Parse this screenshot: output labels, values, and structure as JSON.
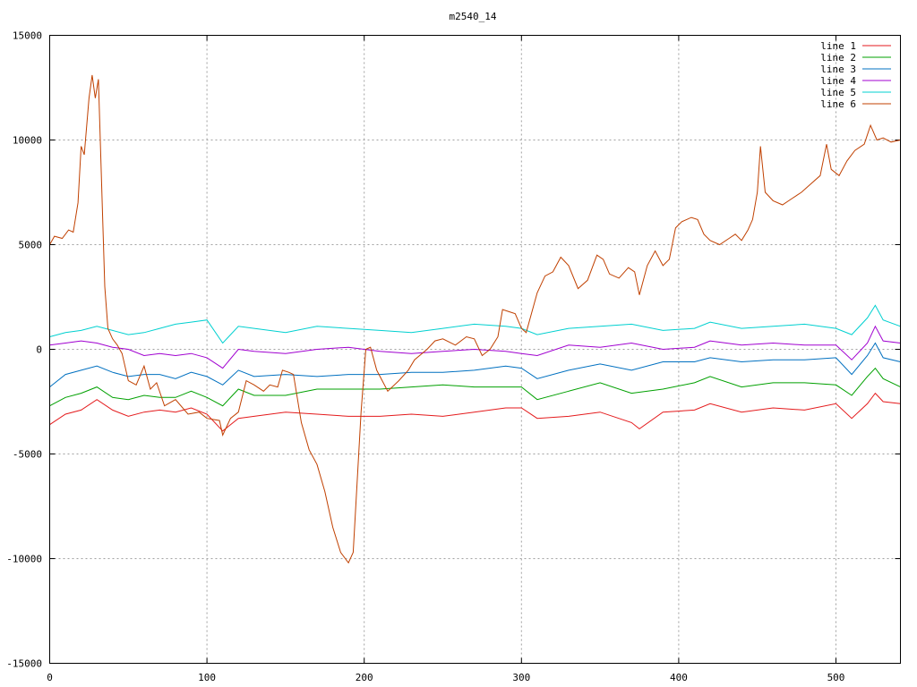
{
  "chart_data": {
    "type": "line",
    "title": "m2540_14",
    "xlim": [
      0,
      541
    ],
    "ylim": [
      -15000,
      15000
    ],
    "grid": true,
    "legend_position": "top-right",
    "xticks": [
      0,
      100,
      200,
      300,
      400,
      500
    ],
    "yticks": [
      -15000,
      -10000,
      -5000,
      0,
      5000,
      10000,
      15000
    ],
    "series": [
      {
        "name": "line 1",
        "color": "#e41a1c",
        "points": [
          [
            0,
            -3600
          ],
          [
            10,
            -3100
          ],
          [
            20,
            -2900
          ],
          [
            30,
            -2400
          ],
          [
            40,
            -2900
          ],
          [
            50,
            -3200
          ],
          [
            60,
            -3000
          ],
          [
            70,
            -2900
          ],
          [
            80,
            -3000
          ],
          [
            90,
            -2800
          ],
          [
            100,
            -3100
          ],
          [
            110,
            -3900
          ],
          [
            120,
            -3300
          ],
          [
            130,
            -3200
          ],
          [
            150,
            -3000
          ],
          [
            170,
            -3100
          ],
          [
            190,
            -3200
          ],
          [
            210,
            -3200
          ],
          [
            230,
            -3100
          ],
          [
            250,
            -3200
          ],
          [
            270,
            -3000
          ],
          [
            290,
            -2800
          ],
          [
            300,
            -2800
          ],
          [
            310,
            -3300
          ],
          [
            330,
            -3200
          ],
          [
            350,
            -3000
          ],
          [
            370,
            -3500
          ],
          [
            375,
            -3800
          ],
          [
            390,
            -3000
          ],
          [
            410,
            -2900
          ],
          [
            420,
            -2600
          ],
          [
            440,
            -3000
          ],
          [
            460,
            -2800
          ],
          [
            480,
            -2900
          ],
          [
            500,
            -2600
          ],
          [
            510,
            -3300
          ],
          [
            520,
            -2600
          ],
          [
            525,
            -2100
          ],
          [
            530,
            -2500
          ],
          [
            541,
            -2600
          ]
        ]
      },
      {
        "name": "line 2",
        "color": "#00a000",
        "points": [
          [
            0,
            -2700
          ],
          [
            10,
            -2300
          ],
          [
            20,
            -2100
          ],
          [
            30,
            -1800
          ],
          [
            40,
            -2300
          ],
          [
            50,
            -2400
          ],
          [
            60,
            -2200
          ],
          [
            70,
            -2300
          ],
          [
            80,
            -2300
          ],
          [
            90,
            -2000
          ],
          [
            100,
            -2300
          ],
          [
            110,
            -2700
          ],
          [
            120,
            -1900
          ],
          [
            130,
            -2200
          ],
          [
            150,
            -2200
          ],
          [
            170,
            -1900
          ],
          [
            190,
            -1900
          ],
          [
            210,
            -1900
          ],
          [
            230,
            -1800
          ],
          [
            250,
            -1700
          ],
          [
            270,
            -1800
          ],
          [
            290,
            -1800
          ],
          [
            300,
            -1800
          ],
          [
            310,
            -2400
          ],
          [
            330,
            -2000
          ],
          [
            350,
            -1600
          ],
          [
            370,
            -2100
          ],
          [
            390,
            -1900
          ],
          [
            410,
            -1600
          ],
          [
            420,
            -1300
          ],
          [
            440,
            -1800
          ],
          [
            460,
            -1600
          ],
          [
            480,
            -1600
          ],
          [
            500,
            -1700
          ],
          [
            510,
            -2200
          ],
          [
            520,
            -1300
          ],
          [
            525,
            -900
          ],
          [
            530,
            -1400
          ],
          [
            541,
            -1800
          ]
        ]
      },
      {
        "name": "line 3",
        "color": "#0070c0",
        "points": [
          [
            0,
            -1800
          ],
          [
            10,
            -1200
          ],
          [
            20,
            -1000
          ],
          [
            30,
            -800
          ],
          [
            40,
            -1100
          ],
          [
            50,
            -1300
          ],
          [
            60,
            -1200
          ],
          [
            70,
            -1200
          ],
          [
            80,
            -1400
          ],
          [
            90,
            -1100
          ],
          [
            100,
            -1300
          ],
          [
            110,
            -1700
          ],
          [
            120,
            -1000
          ],
          [
            130,
            -1300
          ],
          [
            150,
            -1200
          ],
          [
            170,
            -1300
          ],
          [
            190,
            -1200
          ],
          [
            210,
            -1200
          ],
          [
            230,
            -1100
          ],
          [
            250,
            -1100
          ],
          [
            270,
            -1000
          ],
          [
            290,
            -800
          ],
          [
            300,
            -900
          ],
          [
            310,
            -1400
          ],
          [
            330,
            -1000
          ],
          [
            350,
            -700
          ],
          [
            370,
            -1000
          ],
          [
            390,
            -600
          ],
          [
            410,
            -600
          ],
          [
            420,
            -400
          ],
          [
            440,
            -600
          ],
          [
            460,
            -500
          ],
          [
            480,
            -500
          ],
          [
            500,
            -400
          ],
          [
            510,
            -1200
          ],
          [
            520,
            -300
          ],
          [
            525,
            300
          ],
          [
            530,
            -400
          ],
          [
            541,
            -600
          ]
        ]
      },
      {
        "name": "line 4",
        "color": "#a000d0",
        "points": [
          [
            0,
            200
          ],
          [
            10,
            300
          ],
          [
            20,
            400
          ],
          [
            30,
            300
          ],
          [
            40,
            100
          ],
          [
            50,
            0
          ],
          [
            60,
            -300
          ],
          [
            70,
            -200
          ],
          [
            80,
            -300
          ],
          [
            90,
            -200
          ],
          [
            100,
            -400
          ],
          [
            110,
            -900
          ],
          [
            120,
            0
          ],
          [
            130,
            -100
          ],
          [
            150,
            -200
          ],
          [
            170,
            0
          ],
          [
            190,
            100
          ],
          [
            210,
            -100
          ],
          [
            230,
            -200
          ],
          [
            250,
            -100
          ],
          [
            270,
            0
          ],
          [
            290,
            -100
          ],
          [
            300,
            -200
          ],
          [
            310,
            -300
          ],
          [
            330,
            200
          ],
          [
            350,
            100
          ],
          [
            370,
            300
          ],
          [
            390,
            0
          ],
          [
            410,
            100
          ],
          [
            420,
            400
          ],
          [
            440,
            200
          ],
          [
            460,
            300
          ],
          [
            480,
            200
          ],
          [
            500,
            200
          ],
          [
            510,
            -500
          ],
          [
            520,
            300
          ],
          [
            525,
            1100
          ],
          [
            530,
            400
          ],
          [
            541,
            300
          ]
        ]
      },
      {
        "name": "line 5",
        "color": "#00d0d0",
        "points": [
          [
            0,
            600
          ],
          [
            10,
            800
          ],
          [
            20,
            900
          ],
          [
            30,
            1100
          ],
          [
            40,
            900
          ],
          [
            50,
            700
          ],
          [
            60,
            800
          ],
          [
            70,
            1000
          ],
          [
            80,
            1200
          ],
          [
            90,
            1300
          ],
          [
            100,
            1400
          ],
          [
            110,
            300
          ],
          [
            120,
            1100
          ],
          [
            130,
            1000
          ],
          [
            150,
            800
          ],
          [
            170,
            1100
          ],
          [
            190,
            1000
          ],
          [
            210,
            900
          ],
          [
            230,
            800
          ],
          [
            250,
            1000
          ],
          [
            270,
            1200
          ],
          [
            290,
            1100
          ],
          [
            300,
            1000
          ],
          [
            310,
            700
          ],
          [
            330,
            1000
          ],
          [
            350,
            1100
          ],
          [
            370,
            1200
          ],
          [
            390,
            900
          ],
          [
            410,
            1000
          ],
          [
            420,
            1300
          ],
          [
            440,
            1000
          ],
          [
            460,
            1100
          ],
          [
            480,
            1200
          ],
          [
            500,
            1000
          ],
          [
            510,
            700
          ],
          [
            520,
            1500
          ],
          [
            525,
            2100
          ],
          [
            530,
            1400
          ],
          [
            541,
            1100
          ]
        ]
      },
      {
        "name": "line 6",
        "color": "#c04000",
        "points": [
          [
            0,
            5000
          ],
          [
            3,
            5400
          ],
          [
            8,
            5300
          ],
          [
            12,
            5700
          ],
          [
            15,
            5600
          ],
          [
            18,
            7000
          ],
          [
            20,
            9700
          ],
          [
            22,
            9300
          ],
          [
            25,
            12000
          ],
          [
            27,
            13100
          ],
          [
            29,
            12000
          ],
          [
            31,
            12900
          ],
          [
            33,
            8000
          ],
          [
            35,
            3000
          ],
          [
            37,
            1000
          ],
          [
            40,
            500
          ],
          [
            43,
            200
          ],
          [
            46,
            -200
          ],
          [
            50,
            -1500
          ],
          [
            55,
            -1700
          ],
          [
            60,
            -800
          ],
          [
            64,
            -1900
          ],
          [
            68,
            -1600
          ],
          [
            73,
            -2700
          ],
          [
            80,
            -2400
          ],
          [
            88,
            -3100
          ],
          [
            95,
            -3000
          ],
          [
            100,
            -3300
          ],
          [
            108,
            -3400
          ],
          [
            110,
            -4100
          ],
          [
            115,
            -3300
          ],
          [
            120,
            -3000
          ],
          [
            125,
            -1500
          ],
          [
            130,
            -1700
          ],
          [
            136,
            -2000
          ],
          [
            140,
            -1700
          ],
          [
            145,
            -1800
          ],
          [
            148,
            -1000
          ],
          [
            152,
            -1100
          ],
          [
            155,
            -1200
          ],
          [
            160,
            -3500
          ],
          [
            165,
            -4800
          ],
          [
            170,
            -5500
          ],
          [
            175,
            -6800
          ],
          [
            180,
            -8500
          ],
          [
            185,
            -9700
          ],
          [
            190,
            -10200
          ],
          [
            193,
            -9700
          ],
          [
            198,
            -3000
          ],
          [
            201,
            0
          ],
          [
            204,
            100
          ],
          [
            208,
            -1000
          ],
          [
            215,
            -2000
          ],
          [
            222,
            -1500
          ],
          [
            228,
            -1000
          ],
          [
            232,
            -500
          ],
          [
            240,
            0
          ],
          [
            245,
            400
          ],
          [
            250,
            500
          ],
          [
            258,
            200
          ],
          [
            265,
            600
          ],
          [
            270,
            500
          ],
          [
            275,
            -300
          ],
          [
            280,
            0
          ],
          [
            285,
            600
          ],
          [
            288,
            1900
          ],
          [
            292,
            1800
          ],
          [
            296,
            1700
          ],
          [
            300,
            1000
          ],
          [
            303,
            800
          ],
          [
            310,
            2700
          ],
          [
            315,
            3500
          ],
          [
            320,
            3700
          ],
          [
            325,
            4400
          ],
          [
            330,
            4000
          ],
          [
            336,
            2900
          ],
          [
            342,
            3300
          ],
          [
            348,
            4500
          ],
          [
            352,
            4300
          ],
          [
            356,
            3600
          ],
          [
            362,
            3400
          ],
          [
            368,
            3900
          ],
          [
            372,
            3700
          ],
          [
            375,
            2600
          ],
          [
            380,
            4000
          ],
          [
            385,
            4700
          ],
          [
            390,
            4000
          ],
          [
            394,
            4300
          ],
          [
            398,
            5800
          ],
          [
            402,
            6100
          ],
          [
            408,
            6300
          ],
          [
            412,
            6200
          ],
          [
            416,
            5500
          ],
          [
            420,
            5200
          ],
          [
            426,
            5000
          ],
          [
            432,
            5300
          ],
          [
            436,
            5500
          ],
          [
            440,
            5200
          ],
          [
            444,
            5700
          ],
          [
            447,
            6200
          ],
          [
            450,
            7500
          ],
          [
            452,
            9700
          ],
          [
            455,
            7500
          ],
          [
            460,
            7100
          ],
          [
            466,
            6900
          ],
          [
            472,
            7200
          ],
          [
            478,
            7500
          ],
          [
            484,
            7900
          ],
          [
            490,
            8300
          ],
          [
            494,
            9800
          ],
          [
            497,
            8600
          ],
          [
            502,
            8300
          ],
          [
            507,
            9000
          ],
          [
            512,
            9500
          ],
          [
            518,
            9800
          ],
          [
            522,
            10700
          ],
          [
            526,
            10000
          ],
          [
            530,
            10100
          ],
          [
            535,
            9900
          ],
          [
            541,
            10000
          ]
        ]
      }
    ]
  }
}
